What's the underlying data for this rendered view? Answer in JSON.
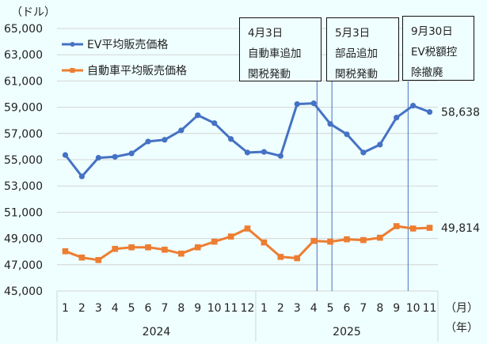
{
  "chart_data": {
    "type": "line",
    "title": "",
    "ylabel": "（ドル）",
    "xlabel_month": "（月）",
    "xlabel_year": "（年）",
    "ylim": [
      45000,
      65000
    ],
    "yticks": [
      "45,000",
      "47,000",
      "49,000",
      "51,000",
      "53,000",
      "55,000",
      "57,000",
      "59,000",
      "61,000",
      "63,000",
      "65,000"
    ],
    "grid": true,
    "legend_position": "upper-left inside",
    "categories": [
      "1",
      "2",
      "3",
      "4",
      "5",
      "6",
      "7",
      "8",
      "9",
      "10",
      "11",
      "12",
      "1",
      "2",
      "3",
      "4",
      "5",
      "6",
      "7",
      "8",
      "9",
      "10",
      "11"
    ],
    "year_groups": [
      {
        "label": "2024",
        "start": 0,
        "end": 11
      },
      {
        "label": "2025",
        "start": 12,
        "end": 22
      }
    ],
    "series": [
      {
        "name": "EV平均販売価格",
        "color": "#4472c4",
        "marker": "circle",
        "values": [
          55360,
          53730,
          55150,
          55220,
          55480,
          56390,
          56520,
          57240,
          58390,
          57790,
          56580,
          55550,
          55600,
          55290,
          59240,
          59300,
          57730,
          56940,
          55550,
          56150,
          58210,
          59120,
          58638
        ],
        "end_label": "58,638"
      },
      {
        "name": "自動車平均販売価格",
        "color": "#ed7d31",
        "marker": "square",
        "values": [
          48030,
          47550,
          47360,
          48210,
          48330,
          48330,
          48150,
          47850,
          48330,
          48760,
          49150,
          49760,
          48700,
          47600,
          47500,
          48820,
          48760,
          48940,
          48880,
          49060,
          49940,
          49760,
          49814
        ],
        "end_label": "49,814"
      }
    ],
    "annotations": [
      {
        "lines": [
          "4月3日",
          "自動車追加",
          "関税発動"
        ],
        "x_index": 15.2
      },
      {
        "lines": [
          "5月3日",
          "部品追加",
          "関税発動"
        ],
        "x_index": 16.1
      },
      {
        "lines": [
          "9月30日",
          "EV税額控",
          "除撤廃"
        ],
        "x_index": 20.7
      }
    ],
    "vline_color": "#4472c4"
  }
}
